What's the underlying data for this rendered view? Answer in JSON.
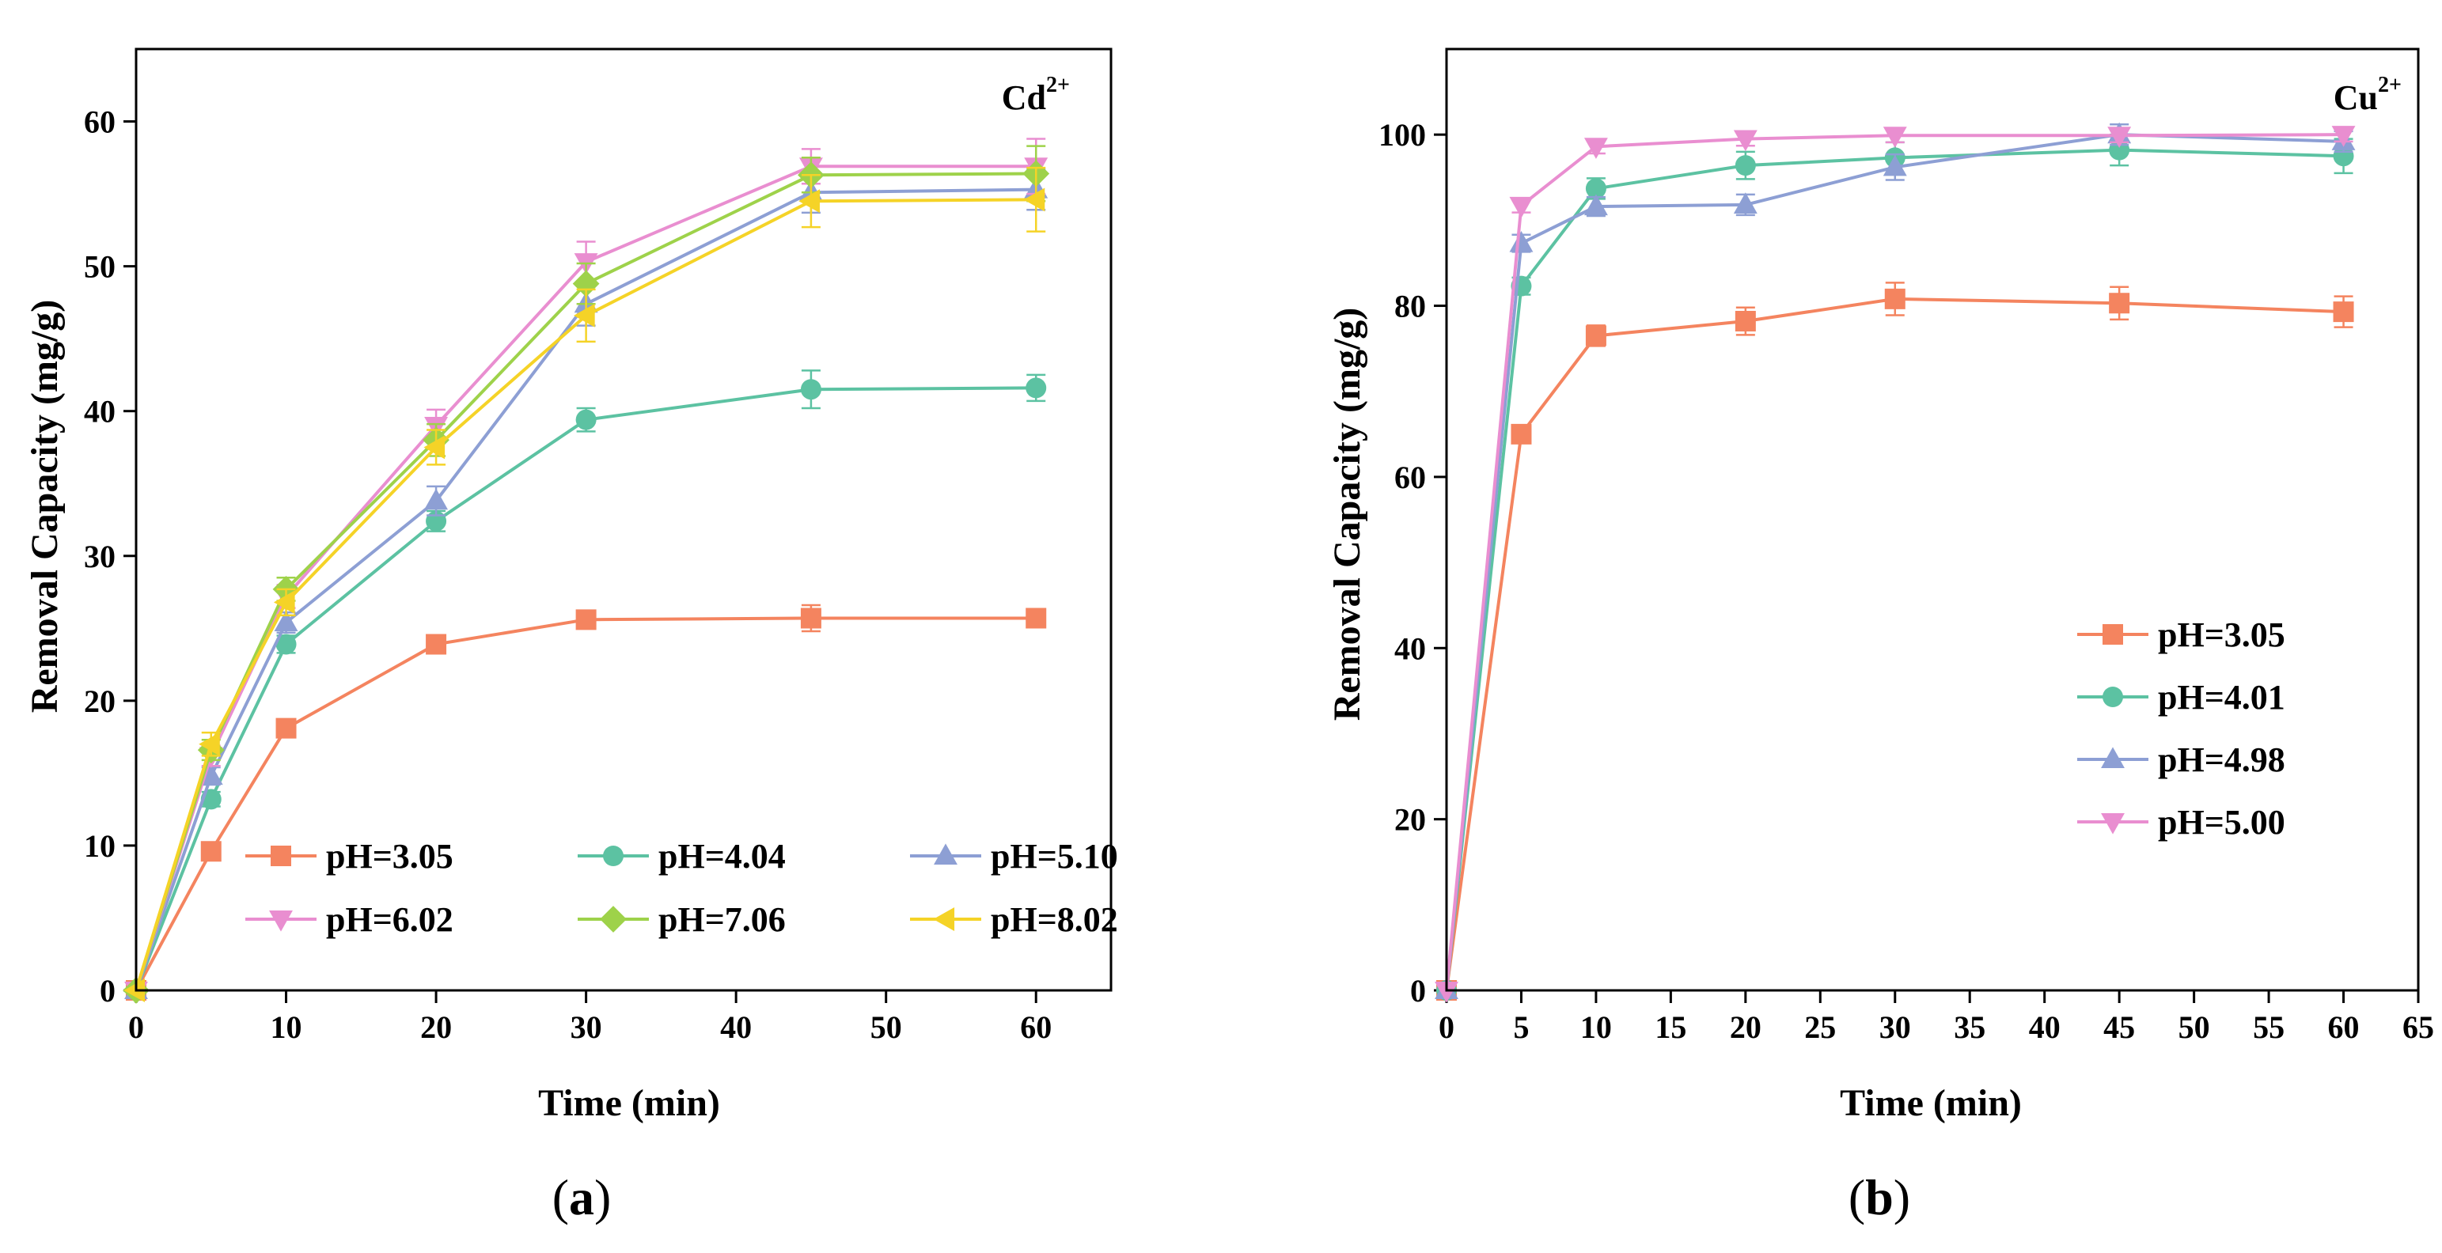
{
  "chart_data": [
    {
      "type": "line",
      "panel": "a",
      "panel_label": "a",
      "ion_label": "Cd",
      "ion_charge": "2+",
      "xlabel": "Time (min)",
      "ylabel": "Removal Capacity (mg/g)",
      "xlim": [
        0,
        65
      ],
      "ylim": [
        0,
        65
      ],
      "xticks": [
        0,
        10,
        20,
        30,
        40,
        50,
        60
      ],
      "yticks": [
        0,
        10,
        20,
        30,
        40,
        50,
        60
      ],
      "x": [
        0,
        5,
        10,
        20,
        30,
        45,
        60
      ],
      "legend_position": "bottom-right",
      "series": [
        {
          "name": "pH=3.05",
          "color": "#F4845F",
          "marker": "square",
          "values": [
            0,
            9.6,
            18.1,
            23.9,
            25.6,
            25.7,
            25.7
          ],
          "errors": [
            0,
            0.4,
            0.5,
            0.5,
            0.6,
            0.9,
            0.5
          ]
        },
        {
          "name": "pH=4.04",
          "color": "#5CC2A2",
          "marker": "circle",
          "values": [
            0,
            13.2,
            23.9,
            32.4,
            39.4,
            41.5,
            41.6
          ],
          "errors": [
            0,
            0.5,
            0.6,
            0.7,
            0.8,
            1.3,
            0.9
          ]
        },
        {
          "name": "pH=5.10",
          "color": "#8D9FD4",
          "marker": "triangle-up",
          "values": [
            0,
            14.8,
            25.4,
            33.8,
            47.4,
            55.1,
            55.3
          ],
          "errors": [
            0,
            0.6,
            0.7,
            1.0,
            1.5,
            1.4,
            1.4
          ]
        },
        {
          "name": "pH=6.02",
          "color": "#E98ED0",
          "marker": "triangle-down",
          "values": [
            0,
            16.2,
            27.2,
            39.0,
            50.3,
            56.9,
            56.9
          ],
          "errors": [
            0,
            0.7,
            0.8,
            1.1,
            1.4,
            1.2,
            1.9
          ]
        },
        {
          "name": "pH=7.06",
          "color": "#9ED24A",
          "marker": "diamond",
          "values": [
            0,
            16.6,
            27.7,
            38.0,
            48.8,
            56.3,
            56.4
          ],
          "errors": [
            0,
            0.7,
            0.8,
            1.1,
            1.4,
            1.2,
            1.9
          ]
        },
        {
          "name": "pH=8.02",
          "color": "#F5D327",
          "marker": "triangle-left",
          "values": [
            0,
            17.0,
            26.8,
            37.5,
            46.6,
            54.5,
            54.6
          ],
          "errors": [
            0,
            0.8,
            0.9,
            1.2,
            1.8,
            1.8,
            2.2
          ]
        }
      ]
    },
    {
      "type": "line",
      "panel": "b",
      "panel_label": "b",
      "ion_label": "Cu",
      "ion_charge": "2+",
      "xlabel": "Time (min)",
      "ylabel": "Removal Capacity (mg/g)",
      "xlim": [
        0,
        65
      ],
      "ylim": [
        0,
        110
      ],
      "xticks": [
        0,
        5,
        10,
        15,
        20,
        25,
        30,
        35,
        40,
        45,
        50,
        55,
        60,
        65
      ],
      "yticks": [
        0,
        20,
        40,
        60,
        80,
        100
      ],
      "x": [
        0,
        5,
        10,
        20,
        30,
        45,
        60
      ],
      "legend_position": "center-right",
      "series": [
        {
          "name": "pH=3.05",
          "color": "#F4845F",
          "marker": "square",
          "values": [
            0,
            65.0,
            76.5,
            78.2,
            80.8,
            80.3,
            79.3
          ],
          "errors": [
            0,
            0.9,
            1.2,
            1.6,
            1.9,
            1.9,
            1.8
          ]
        },
        {
          "name": "pH=4.01",
          "color": "#5CC2A2",
          "marker": "circle",
          "values": [
            0,
            82.3,
            93.7,
            96.4,
            97.3,
            98.2,
            97.5
          ],
          "errors": [
            0,
            1.0,
            1.2,
            1.6,
            1.8,
            1.8,
            2.0
          ]
        },
        {
          "name": "pH=4.98",
          "color": "#8D9FD4",
          "marker": "triangle-up",
          "values": [
            0,
            87.3,
            91.6,
            91.8,
            96.2,
            100.0,
            99.2
          ],
          "errors": [
            0,
            1.0,
            1.1,
            1.2,
            1.5,
            1.2,
            1.2
          ]
        },
        {
          "name": "pH=5.00",
          "color": "#E98ED0",
          "marker": "triangle-down",
          "values": [
            0,
            91.7,
            98.6,
            99.5,
            99.9,
            99.9,
            100.0
          ],
          "errors": [
            0,
            0.8,
            0.8,
            0.8,
            0.8,
            0.8,
            0.8
          ]
        }
      ]
    }
  ]
}
